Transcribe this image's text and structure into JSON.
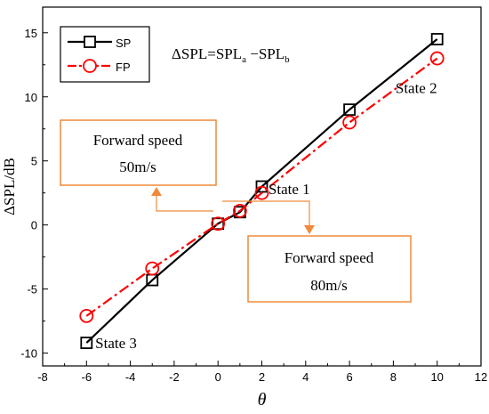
{
  "chart_data": {
    "type": "line",
    "title": "",
    "xlabel": "θ",
    "ylabel": "ΔSPL/dB",
    "xlim": [
      -8,
      12
    ],
    "ylim": [
      -11,
      17
    ],
    "xticks": [
      -8,
      -6,
      -4,
      -2,
      0,
      2,
      4,
      6,
      8,
      10,
      12
    ],
    "yticks": [
      -10,
      -5,
      0,
      5,
      10,
      15
    ],
    "grid": false,
    "legend_position": "top-left",
    "series": [
      {
        "name": "SP",
        "color": "#000000",
        "line_style": "solid",
        "marker": "square",
        "x": [
          -6,
          -3,
          0,
          1,
          2,
          6,
          10
        ],
        "y": [
          -9.2,
          -4.3,
          0.1,
          1.0,
          3.0,
          9.0,
          14.5
        ]
      },
      {
        "name": "FP",
        "color": "#ff0000",
        "line_style": "dash-dot",
        "marker": "circle",
        "x": [
          -6,
          -3,
          0,
          1,
          2,
          6,
          10
        ],
        "y": [
          -7.1,
          -3.4,
          0.1,
          1.1,
          2.5,
          8.0,
          13.0
        ]
      }
    ],
    "annotations": {
      "formula": {
        "delta": "ΔSPL=SPL",
        "sub_a": "a",
        "minus": " −SPL",
        "sub_b": "b"
      },
      "state_labels": [
        {
          "text": "State 1",
          "x": 2.3,
          "y": 2.4
        },
        {
          "text": "State 2",
          "x": 8.1,
          "y": 10.3
        },
        {
          "text": "State 3",
          "x": -5.6,
          "y": -9.6
        }
      ],
      "boxes": [
        {
          "line1": "Forward speed",
          "line2": "50m/s",
          "color": "#f08a3c"
        },
        {
          "line1": "Forward speed",
          "line2": "80m/s",
          "color": "#f08a3c"
        }
      ]
    }
  }
}
